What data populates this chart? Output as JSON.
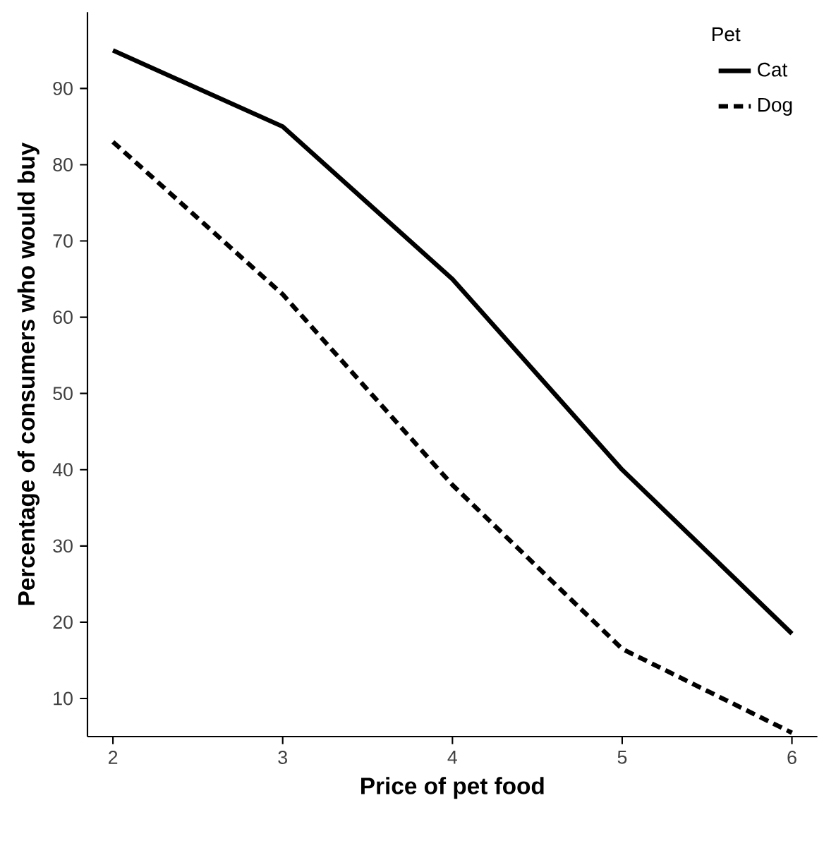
{
  "chart_data": {
    "type": "line",
    "xlabel": "Price of pet food",
    "ylabel": "Percentage of consumers who would buy",
    "legend_title": "Pet",
    "legend": "top right",
    "grid": false,
    "marker": "none",
    "x": [
      2,
      3,
      4,
      5,
      6
    ],
    "xlim": [
      1.85,
      6.15
    ],
    "ylim": [
      5,
      100
    ],
    "xticks": [
      2,
      3,
      4,
      5,
      6
    ],
    "yticks": [
      10,
      20,
      30,
      40,
      50,
      60,
      70,
      80,
      90
    ],
    "series": [
      {
        "name": "Cat",
        "color": "#000000",
        "line_style": "solid",
        "values": [
          95,
          85,
          65,
          40,
          18.5
        ]
      },
      {
        "name": "Dog",
        "color": "#000000",
        "line_style": "dashed",
        "values": [
          83,
          63,
          38,
          16.5,
          5.5
        ]
      }
    ]
  }
}
